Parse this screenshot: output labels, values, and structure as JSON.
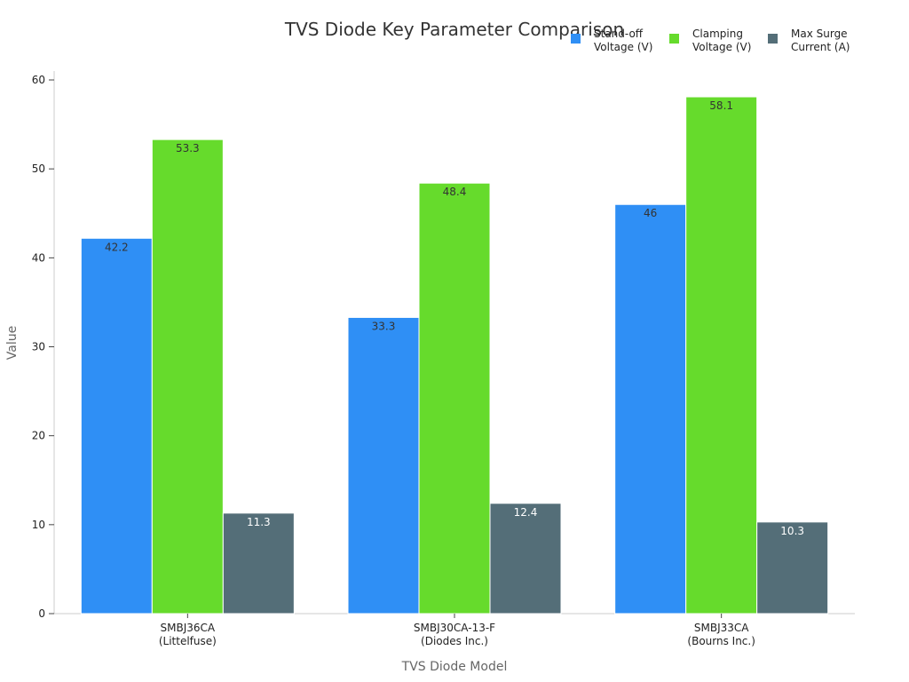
{
  "chart_data": {
    "type": "bar",
    "title": "TVS Diode Key Parameter Comparison",
    "xlabel": "TVS Diode Model",
    "ylabel": "Value",
    "ylim": [
      0,
      61
    ],
    "yticks": [
      0,
      10,
      20,
      30,
      40,
      50,
      60
    ],
    "grid": false,
    "legend_position": "top-right",
    "categories": [
      [
        "SMBJ36CA",
        "(Littelfuse)"
      ],
      [
        "SMBJ30CA-13-F",
        "(Diodes Inc.)"
      ],
      [
        "SMBJ33CA",
        "(Bourns Inc.)"
      ]
    ],
    "series": [
      {
        "name": [
          "Stand-off",
          "Voltage (V)"
        ],
        "color": "#2f8ff5",
        "label_color": "#333333",
        "values": [
          42.2,
          33.3,
          46
        ]
      },
      {
        "name": [
          "Clamping",
          "Voltage (V)"
        ],
        "color": "#66db2c",
        "label_color": "#333333",
        "values": [
          53.3,
          48.4,
          58.1
        ]
      },
      {
        "name": [
          "Max Surge",
          "Current (A)"
        ],
        "color": "#546e78",
        "label_color": "#ffffff",
        "values": [
          11.3,
          12.4,
          10.3
        ]
      }
    ]
  }
}
